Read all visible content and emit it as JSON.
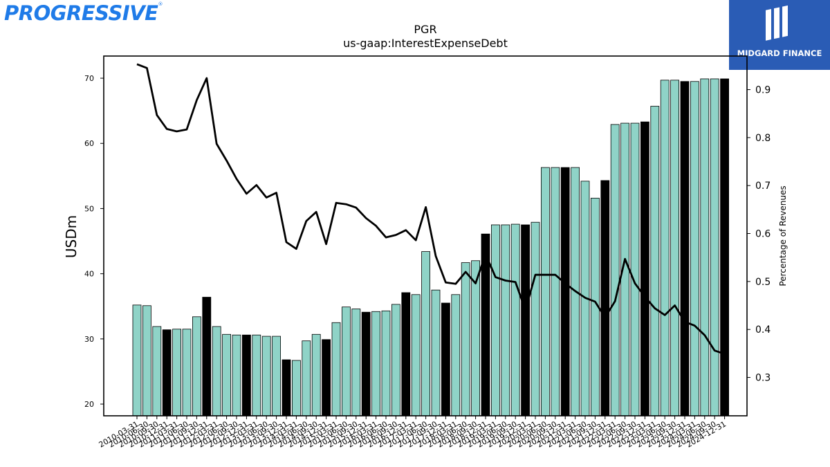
{
  "branding": {
    "left_logo": "PROGRESSIVE",
    "right_logo": "MIDGARD FINANCE"
  },
  "colors": {
    "bar_normal": "#8fd3c7",
    "bar_highlight": "#000000",
    "line": "#000000",
    "logo_left": "#1f7be8",
    "logo_right_bg": "#2a5cb5"
  },
  "chart_data": {
    "type": "bar",
    "title": "PGR",
    "subtitle": "us-gaap:InterestExpenseDebt",
    "ylabel": "USDm",
    "y2label": "Percentage of Revenues",
    "ylim": [
      18.2,
      73.4
    ],
    "y2lim": [
      0.22,
      0.97
    ],
    "yticks": [
      20,
      30,
      40,
      50,
      60,
      70
    ],
    "y2ticks": [
      "0.3",
      "0.4",
      "0.5",
      "0.6",
      "0.7",
      "0.8",
      "0.9"
    ],
    "categories": [
      "2010-03-31",
      "2010-06-30",
      "2010-09-30",
      "2010-12-31",
      "2011-03-31",
      "2011-06-30",
      "2011-09-30",
      "2011-12-31",
      "2012-03-31",
      "2012-06-30",
      "2012-09-30",
      "2012-12-31",
      "2013-03-31",
      "2013-06-30",
      "2013-09-30",
      "2013-12-31",
      "2014-03-31",
      "2014-06-30",
      "2014-09-30",
      "2014-12-31",
      "2015-03-31",
      "2015-06-30",
      "2015-09-30",
      "2015-12-31",
      "2016-03-31",
      "2016-06-30",
      "2016-09-30",
      "2016-12-31",
      "2017-03-31",
      "2017-06-30",
      "2017-09-30",
      "2017-12-31",
      "2018-03-31",
      "2018-06-30",
      "2018-09-30",
      "2018-12-31",
      "2019-03-31",
      "2019-06-30",
      "2019-09-30",
      "2019-12-31",
      "2020-03-31",
      "2020-06-30",
      "2020-09-30",
      "2020-12-31",
      "2021-03-31",
      "2021-06-30",
      "2021-09-30",
      "2021-12-31",
      "2022-03-31",
      "2022-06-30",
      "2022-09-30",
      "2022-12-31",
      "2023-03-31",
      "2023-06-30",
      "2023-09-30",
      "2023-12-31",
      "2024-03-31",
      "2024-06-30",
      "2024-09-30",
      "2024-12-31"
    ],
    "series": [
      {
        "type": "bar",
        "axis": "left",
        "values": [
          35.2,
          35.1,
          31.9,
          31.4,
          31.5,
          31.5,
          33.4,
          36.4,
          31.9,
          30.7,
          30.6,
          30.6,
          30.6,
          30.4,
          30.4,
          26.8,
          26.7,
          29.7,
          30.7,
          29.9,
          32.5,
          34.9,
          34.6,
          34.1,
          34.2,
          34.3,
          35.3,
          37.1,
          36.8,
          43.4,
          37.5,
          35.5,
          36.8,
          41.7,
          42.0,
          46.1,
          47.5,
          47.5,
          47.6,
          47.5,
          47.9,
          56.3,
          56.3,
          56.3,
          56.3,
          54.2,
          51.6,
          54.3,
          62.9,
          63.1,
          63.1,
          63.3,
          65.7,
          69.7,
          69.7,
          69.5,
          69.5,
          69.9,
          69.9,
          69.9
        ],
        "highlight": [
          false,
          false,
          false,
          true,
          false,
          false,
          false,
          true,
          false,
          false,
          false,
          true,
          false,
          false,
          false,
          true,
          false,
          false,
          false,
          true,
          false,
          false,
          false,
          true,
          false,
          false,
          false,
          true,
          false,
          false,
          false,
          true,
          false,
          false,
          false,
          true,
          false,
          false,
          false,
          true,
          false,
          false,
          false,
          true,
          false,
          false,
          false,
          true,
          false,
          false,
          false,
          true,
          false,
          false,
          false,
          true,
          false,
          false,
          false,
          true
        ]
      },
      {
        "type": "line",
        "axis": "right",
        "values": [
          0.953,
          0.945,
          0.847,
          0.818,
          0.813,
          0.817,
          0.878,
          0.924,
          0.787,
          0.752,
          0.714,
          0.683,
          0.701,
          0.675,
          0.685,
          0.582,
          0.568,
          0.626,
          0.645,
          0.578,
          0.664,
          0.661,
          0.654,
          0.632,
          0.616,
          0.592,
          0.597,
          0.607,
          0.586,
          0.655,
          0.553,
          0.498,
          0.495,
          0.52,
          0.496,
          0.557,
          0.509,
          0.502,
          0.499,
          0.441,
          0.514,
          0.514,
          0.514,
          0.496,
          0.48,
          0.466,
          0.458,
          0.425,
          0.459,
          0.547,
          0.496,
          0.468,
          0.444,
          0.43,
          0.45,
          0.416,
          0.408,
          0.388,
          0.356,
          0.349
        ]
      }
    ]
  }
}
